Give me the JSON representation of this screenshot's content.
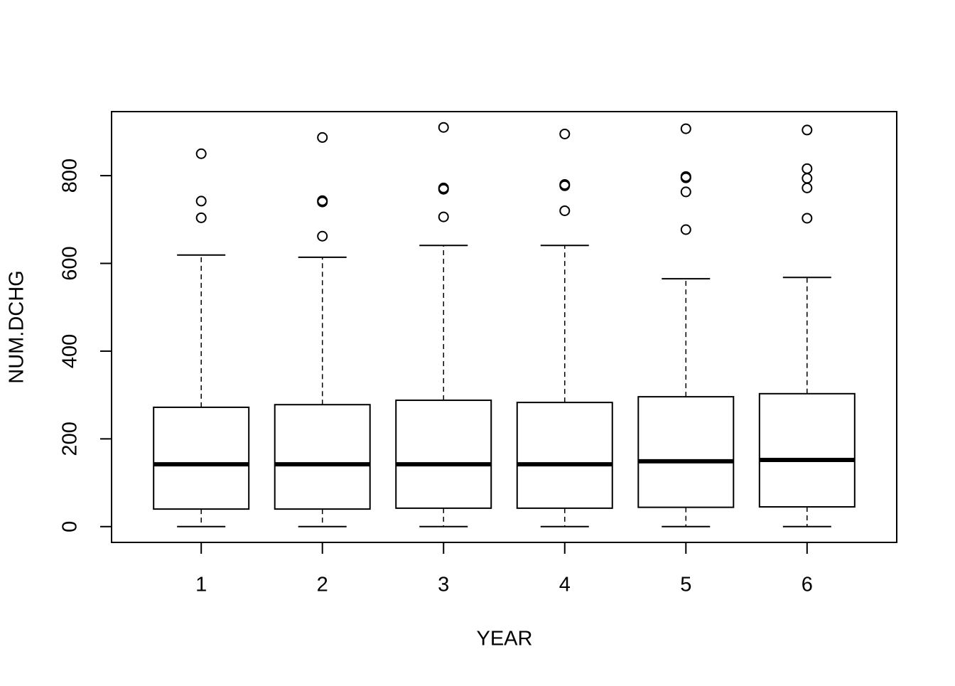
{
  "chart_data": {
    "type": "boxplot",
    "x_label": "YEAR",
    "y_label": "NUM.DCHG",
    "categories": [
      "1",
      "2",
      "3",
      "4",
      "5",
      "6"
    ],
    "ylim": [
      -36,
      946
    ],
    "yticks": [
      0,
      200,
      400,
      600,
      800
    ],
    "color": "#000000",
    "boxes": [
      {
        "min": 0,
        "q1": 40,
        "median": 142,
        "q3": 272,
        "max": 619,
        "outliers": [
          850,
          742,
          704
        ]
      },
      {
        "min": 0,
        "q1": 40,
        "median": 142,
        "q3": 278,
        "max": 614,
        "outliers": [
          887,
          743,
          740,
          662
        ]
      },
      {
        "min": 0,
        "q1": 42,
        "median": 142,
        "q3": 288,
        "max": 641,
        "outliers": [
          910,
          772,
          769,
          706
        ]
      },
      {
        "min": 0,
        "q1": 42,
        "median": 142,
        "q3": 283,
        "max": 641,
        "outliers": [
          895,
          780,
          777,
          720
        ]
      },
      {
        "min": 0,
        "q1": 44,
        "median": 149,
        "q3": 296,
        "max": 565,
        "outliers": [
          907,
          798,
          795,
          763,
          677
        ]
      },
      {
        "min": 0,
        "q1": 45,
        "median": 152,
        "q3": 303,
        "max": 568,
        "outliers": [
          904,
          816,
          794,
          772,
          703
        ]
      }
    ]
  }
}
